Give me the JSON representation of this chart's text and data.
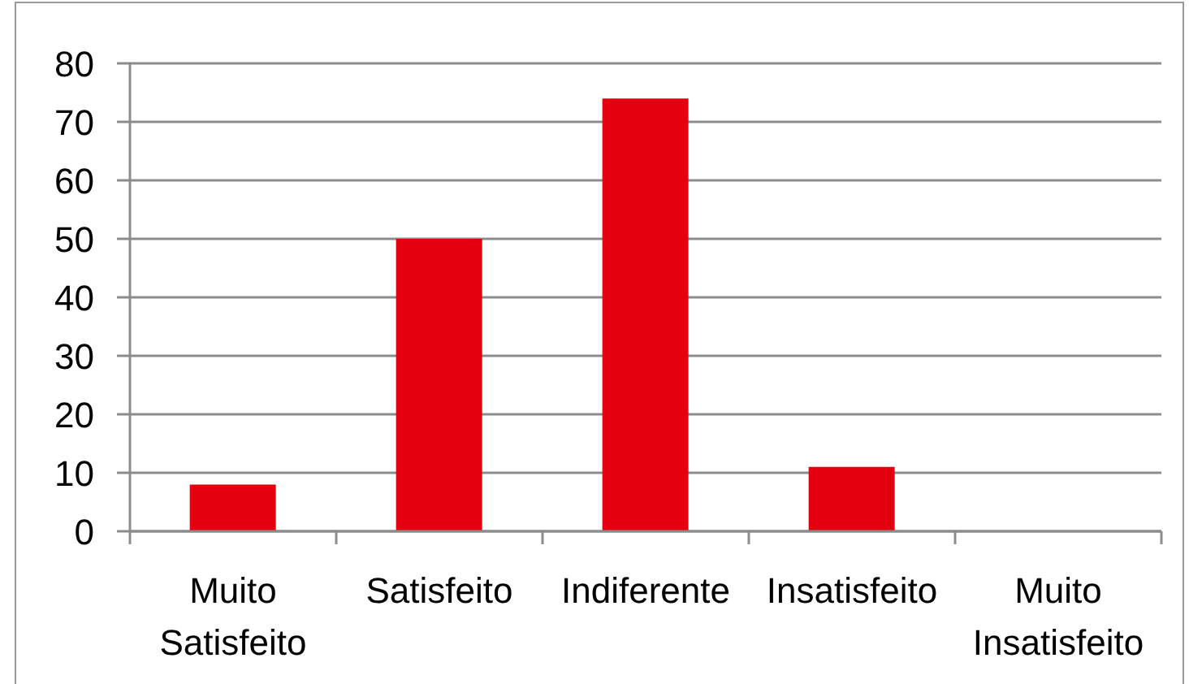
{
  "chart_data": {
    "type": "bar",
    "categories": [
      "Muito Satisfeito",
      "Satisfeito",
      "Indiferente",
      "Insatisfeito",
      "Muito Insatisfeito"
    ],
    "values": [
      8,
      50,
      74,
      11,
      0
    ],
    "color": "#e3000f",
    "ylim": [
      0,
      80
    ],
    "yticks": [
      0,
      10,
      20,
      30,
      40,
      50,
      60,
      70,
      80
    ],
    "grid": "y"
  }
}
